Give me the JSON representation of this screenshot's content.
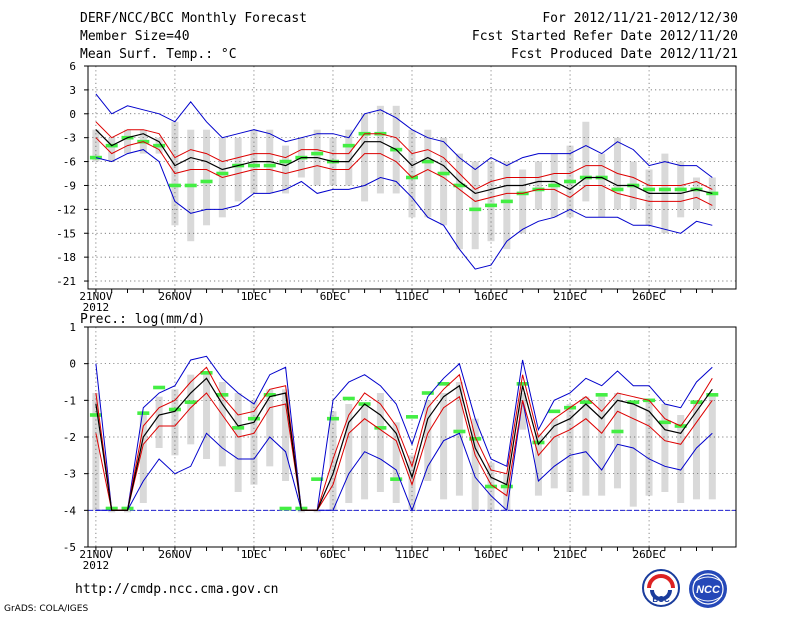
{
  "header": {
    "title": "DERF/NCC/BCC Monthly Forecast",
    "member_size": "Member Size=40",
    "variable": "Mean Surf. Temp.: °C",
    "period": "For 2012/11/21-2012/12/30",
    "started": "Fcst Started Refer Date 2012/11/20",
    "produced": "Fcst Produced Date 2012/11/21"
  },
  "footer": {
    "url": "http://cmdp.ncc.cma.gov.cn",
    "grads": "GrADS: COLA/IGES",
    "logo_bcc": "BCC",
    "logo_ncc": "NCC"
  },
  "colors": {
    "mean": "#000000",
    "spread": "#dd0000",
    "extreme": "#0000cc",
    "member_bar": "#d9d9d9",
    "obs": "#44ee44",
    "zero_line": "#0000cc"
  },
  "chart_data": [
    {
      "type": "line",
      "title": "Mean Surf. Temp.: °C",
      "ylim": [
        -22,
        6
      ],
      "yticks": [
        6,
        3,
        0,
        -3,
        -6,
        -9,
        -12,
        -15,
        -18,
        -21
      ],
      "x_count": 40,
      "x_tick_labels": [
        {
          "day": 0,
          "label": "21NOV",
          "sub": "2012"
        },
        {
          "day": 5,
          "label": "26NOV"
        },
        {
          "day": 10,
          "label": "1DEC"
        },
        {
          "day": 15,
          "label": "6DEC"
        },
        {
          "day": 20,
          "label": "11DEC"
        },
        {
          "day": 25,
          "label": "16DEC"
        },
        {
          "day": 30,
          "label": "21DEC"
        },
        {
          "day": 35,
          "label": "26DEC"
        }
      ],
      "series": [
        {
          "name": "max",
          "values": [
            2.5,
            0,
            1,
            0.5,
            0,
            -1,
            1.5,
            -1,
            -3,
            -2.5,
            -2,
            -2.5,
            -3.5,
            -3,
            -2.5,
            -2.5,
            -3,
            0,
            0.5,
            -0.5,
            -2,
            -3,
            -3.5,
            -5.5,
            -7,
            -5.5,
            -6.5,
            -5.5,
            -5,
            -5,
            -5,
            -4,
            -5,
            -3.5,
            -4.5,
            -6.5,
            -6,
            -6.5,
            -6.5,
            -8
          ]
        },
        {
          "name": "upper",
          "values": [
            -1,
            -3,
            -2,
            -2,
            -2.5,
            -5.5,
            -4.5,
            -5,
            -6,
            -5.5,
            -5,
            -5,
            -5.5,
            -4.5,
            -4.5,
            -5,
            -5,
            -2.5,
            -2.5,
            -3,
            -5,
            -4.5,
            -5.5,
            -7.5,
            -9.5,
            -8.5,
            -8,
            -8,
            -8,
            -7.5,
            -7.5,
            -6.5,
            -6.5,
            -7.5,
            -8,
            -9,
            -9,
            -9,
            -8.5,
            -9.5
          ]
        },
        {
          "name": "mean",
          "values": [
            -2,
            -4,
            -3,
            -2.5,
            -3.5,
            -6.5,
            -5.5,
            -6,
            -7,
            -6.5,
            -6,
            -6,
            -6.5,
            -5.5,
            -5.5,
            -6,
            -6,
            -3.5,
            -3.5,
            -4.5,
            -6.5,
            -5.5,
            -6.5,
            -8.5,
            -10,
            -9.5,
            -9,
            -9,
            -8.5,
            -8.5,
            -9.5,
            -8,
            -8,
            -9,
            -9,
            -10,
            -10,
            -10,
            -9.5,
            -10
          ]
        },
        {
          "name": "lower",
          "values": [
            -3,
            -5,
            -4,
            -3.5,
            -4.5,
            -7.5,
            -7,
            -7,
            -8,
            -7.5,
            -7,
            -7,
            -7.5,
            -7,
            -6.5,
            -7,
            -7,
            -5,
            -5,
            -6,
            -8,
            -7,
            -8,
            -9.5,
            -11,
            -10.5,
            -10,
            -10,
            -9.5,
            -9.5,
            -10.5,
            -9,
            -9,
            -10,
            -10.5,
            -11,
            -11,
            -11,
            -10.5,
            -11.5
          ]
        },
        {
          "name": "min",
          "values": [
            -5.5,
            -6,
            -5,
            -4.5,
            -6,
            -11,
            -12.5,
            -12,
            -12,
            -11.5,
            -10,
            -10,
            -9.5,
            -8.5,
            -10,
            -9.5,
            -9.5,
            -9,
            -8,
            -8.5,
            -10.5,
            -13,
            -14,
            -17,
            -19.5,
            -19,
            -16,
            -14.5,
            -13.5,
            -13,
            -12,
            -13,
            -13,
            -13,
            -14,
            -14,
            -14.5,
            -15,
            -13.5,
            -14
          ]
        },
        {
          "name": "bar_top",
          "values": [
            -2,
            -3,
            -2,
            -2,
            -3,
            -1,
            -2,
            -2,
            -3,
            -3,
            -2,
            -2,
            -4,
            -3,
            -2,
            -3,
            -2,
            0,
            1,
            1,
            -2,
            -2,
            -3,
            -5,
            -6,
            -6,
            -6,
            -7,
            -6,
            -5,
            -4,
            -1,
            -5,
            -3,
            -6,
            -7,
            -5,
            -6,
            -8,
            -8
          ]
        },
        {
          "name": "bar_bottom",
          "values": [
            -6,
            -6,
            -5,
            -5,
            -5,
            -14,
            -16,
            -14,
            -13,
            -11,
            -10,
            -10,
            -10,
            -8,
            -9,
            -9,
            -9,
            -11,
            -10,
            -10,
            -13,
            -13,
            -14,
            -17,
            -17,
            -16,
            -17,
            -15,
            -12,
            -13,
            -13,
            -11,
            -13,
            -12,
            -12,
            -14,
            -15,
            -13,
            -12,
            -12
          ]
        },
        {
          "name": "obs",
          "values": [
            -5.5,
            -4,
            -3,
            -3.5,
            -4,
            -9,
            -9,
            -8.5,
            -7.5,
            -6.5,
            -6.5,
            -6.5,
            -6,
            -5.5,
            -5,
            -6,
            -4,
            -2.5,
            -2.5,
            -4.5,
            -8,
            -6,
            -7.5,
            -9,
            -12,
            -11.5,
            -11,
            -10,
            -9.5,
            -9,
            -8.5,
            -8,
            -8,
            -9.5,
            -9,
            -9.5,
            -9.5,
            -9.5,
            -9.5,
            -10
          ]
        }
      ]
    },
    {
      "type": "line",
      "title": "Prec.: log(mm/d)",
      "ylim": [
        -5,
        1
      ],
      "yticks": [
        1,
        0,
        -1,
        -2,
        -3,
        -4,
        -5
      ],
      "x_count": 40,
      "x_tick_labels": [
        {
          "day": 0,
          "label": "21NOV",
          "sub": "2012"
        },
        {
          "day": 5,
          "label": "26NOV"
        },
        {
          "day": 10,
          "label": "1DEC"
        },
        {
          "day": 15,
          "label": "6DEC"
        },
        {
          "day": 20,
          "label": "11DEC"
        },
        {
          "day": 25,
          "label": "16DEC"
        },
        {
          "day": 30,
          "label": "21DEC"
        },
        {
          "day": 35,
          "label": "26DEC"
        }
      ],
      "reference_line": -4,
      "series": [
        {
          "name": "max",
          "values": [
            0,
            -4,
            -4,
            -1.2,
            -0.8,
            -0.6,
            0.1,
            0.2,
            -0.4,
            -0.8,
            -1.1,
            -0.3,
            -0.1,
            -4,
            -4,
            -1,
            -0.5,
            -0.3,
            -0.6,
            -1.1,
            -2.2,
            -0.9,
            -0.4,
            0,
            -1.5,
            -2.6,
            -2.8,
            0.1,
            -1.8,
            -1,
            -0.8,
            -0.4,
            -0.6,
            -0.2,
            -0.6,
            -0.6,
            -1.1,
            -1.2,
            -0.5,
            -0.1
          ]
        },
        {
          "name": "upper",
          "values": [
            -0.8,
            -4,
            -4,
            -1.7,
            -1.2,
            -1,
            -0.5,
            -0.1,
            -0.9,
            -1.4,
            -1.3,
            -0.7,
            -0.6,
            -4,
            -4,
            -2.6,
            -1.4,
            -0.8,
            -1.1,
            -1.7,
            -2.8,
            -1.2,
            -0.7,
            -0.3,
            -2,
            -2.9,
            -3,
            -0.3,
            -2,
            -1.5,
            -1.2,
            -0.9,
            -1.3,
            -0.8,
            -0.9,
            -1,
            -1.5,
            -1.7,
            -1.1,
            -0.4
          ]
        },
        {
          "name": "mean",
          "values": [
            -1.1,
            -4,
            -4,
            -2,
            -1.4,
            -1.3,
            -0.8,
            -0.4,
            -1.1,
            -1.7,
            -1.6,
            -0.9,
            -0.8,
            -4,
            -4,
            -3,
            -1.6,
            -1.1,
            -1.4,
            -1.9,
            -3.1,
            -1.5,
            -0.9,
            -0.6,
            -2.3,
            -3.1,
            -3.3,
            -0.6,
            -2.2,
            -1.7,
            -1.5,
            -1.1,
            -1.5,
            -1,
            -1.1,
            -1.3,
            -1.8,
            -1.9,
            -1.3,
            -0.7
          ]
        },
        {
          "name": "lower",
          "values": [
            -1.9,
            -4,
            -4,
            -2.2,
            -1.7,
            -1.7,
            -1.2,
            -0.8,
            -1.4,
            -2,
            -1.9,
            -1.2,
            -1.1,
            -4,
            -4,
            -3.3,
            -1.9,
            -1.5,
            -1.8,
            -2.1,
            -3.3,
            -1.9,
            -1.2,
            -0.9,
            -2.5,
            -3.3,
            -3.6,
            -1,
            -2.5,
            -2,
            -1.8,
            -1.5,
            -1.9,
            -1.3,
            -1.5,
            -1.7,
            -2.1,
            -2.2,
            -1.6,
            -1
          ]
        },
        {
          "name": "min",
          "values": [
            -4,
            -4,
            -4,
            -3.2,
            -2.6,
            -3,
            -2.8,
            -1.9,
            -2.3,
            -2.6,
            -2.6,
            -2,
            -2.4,
            -4,
            -4,
            -4,
            -3,
            -2.4,
            -2.6,
            -2.9,
            -4,
            -2.8,
            -2.1,
            -1.9,
            -3.1,
            -3.6,
            -4,
            -1,
            -3.2,
            -2.8,
            -2.5,
            -2.4,
            -2.9,
            -2.2,
            -2.3,
            -2.6,
            -2.8,
            -2.9,
            -2.3,
            -1.9
          ]
        },
        {
          "name": "bar_top",
          "values": [
            -0.8,
            -4,
            -4,
            -1.3,
            -0.9,
            -0.7,
            -0.3,
            -0.2,
            -0.5,
            -0.8,
            -1,
            -0.7,
            -0.7,
            -4,
            -4,
            -1.3,
            -1.1,
            -1.1,
            -0.8,
            -1.6,
            -2.5,
            -1,
            -0.8,
            -0.5,
            -1.5,
            -2.7,
            -3,
            -0.8,
            -1.9,
            -1.5,
            -1.1,
            -0.9,
            -0.9,
            -0.8,
            -1,
            -1,
            -1.1,
            -1.4,
            -1,
            -0.9
          ]
        },
        {
          "name": "bar_bottom",
          "values": [
            -4,
            -4,
            -4,
            -3.8,
            -2.3,
            -2.5,
            -2.2,
            -2.6,
            -2.8,
            -3.5,
            -3.3,
            -2.8,
            -3.2,
            -4,
            -4,
            -4,
            -3.8,
            -3.7,
            -3.5,
            -3.8,
            -4,
            -3.2,
            -3.7,
            -3.6,
            -4,
            -4,
            -4,
            -1.8,
            -3.6,
            -3.4,
            -3.5,
            -3.6,
            -3.6,
            -3.4,
            -3.9,
            -3.6,
            -3.5,
            -3.8,
            -3.7,
            -3.7
          ]
        },
        {
          "name": "obs",
          "values": [
            -1.4,
            -3.95,
            -3.95,
            -1.35,
            -0.65,
            -1.25,
            -1.05,
            -0.25,
            -0.85,
            -1.75,
            -1.5,
            -0.85,
            -3.95,
            -3.95,
            -3.15,
            -1.5,
            -0.95,
            -1.1,
            -1.75,
            -3.15,
            -1.45,
            -0.8,
            -0.55,
            -1.85,
            -2.05,
            -3.35,
            -3.35,
            -0.55,
            -2.15,
            -1.3,
            -1.2,
            -1.05,
            -0.85,
            -1.85,
            -1.05,
            -1.0,
            -1.6,
            -1.7,
            -1.05,
            -0.85
          ]
        }
      ]
    }
  ]
}
